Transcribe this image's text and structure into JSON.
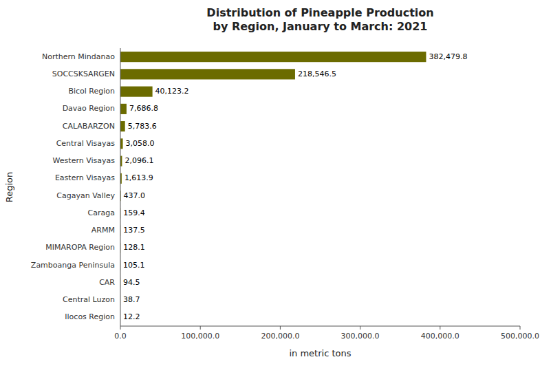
{
  "chart_data": {
    "type": "bar",
    "orientation": "horizontal",
    "title": "Distribution of Pineapple Production\nby Region, January to March: 2021",
    "x_label": "in metric tons",
    "y_label": "Region",
    "categories": [
      "Ilocos Region",
      "Central Luzon",
      "CAR",
      "Zamboanga Peninsula",
      "MIMAROPA Region",
      "ARMM",
      "Caraga",
      "Cagayan Valley",
      "Eastern Visayas",
      "Western Visayas",
      "Central Visayas",
      "CALABARZON",
      "Davao Region",
      "Bicol Region",
      "SOCCSKSARGEN",
      "Northern Mindanao"
    ],
    "values": [
      12.2,
      38.7,
      94.5,
      105.1,
      128.1,
      137.5,
      159.4,
      437.0,
      1613.9,
      2096.1,
      3058.0,
      5783.6,
      7686.8,
      40123.2,
      218546.5,
      382479.8
    ],
    "value_labels": [
      "12.2",
      "38.7",
      "94.5",
      "105.1",
      "128.1",
      "137.5",
      "159.4",
      "437.0",
      "1,613.9",
      "2,096.1",
      "3,058.0",
      "5,783.6",
      "7,686.8",
      "40,123.2",
      "218,546.5",
      "382,479.8"
    ],
    "data_labels": true,
    "color": "#6b6b00",
    "xlim": [
      0,
      500000
    ],
    "xticks": [
      {
        "value": 0,
        "label": "0.0"
      },
      {
        "value": 100000,
        "label": "100,000.0"
      },
      {
        "value": 200000,
        "label": "200,000.0"
      },
      {
        "value": 300000,
        "label": "300,000.0"
      },
      {
        "value": 400000,
        "label": "400,000.0"
      },
      {
        "value": 500000,
        "label": "500,000.0"
      }
    ],
    "grid": false
  }
}
